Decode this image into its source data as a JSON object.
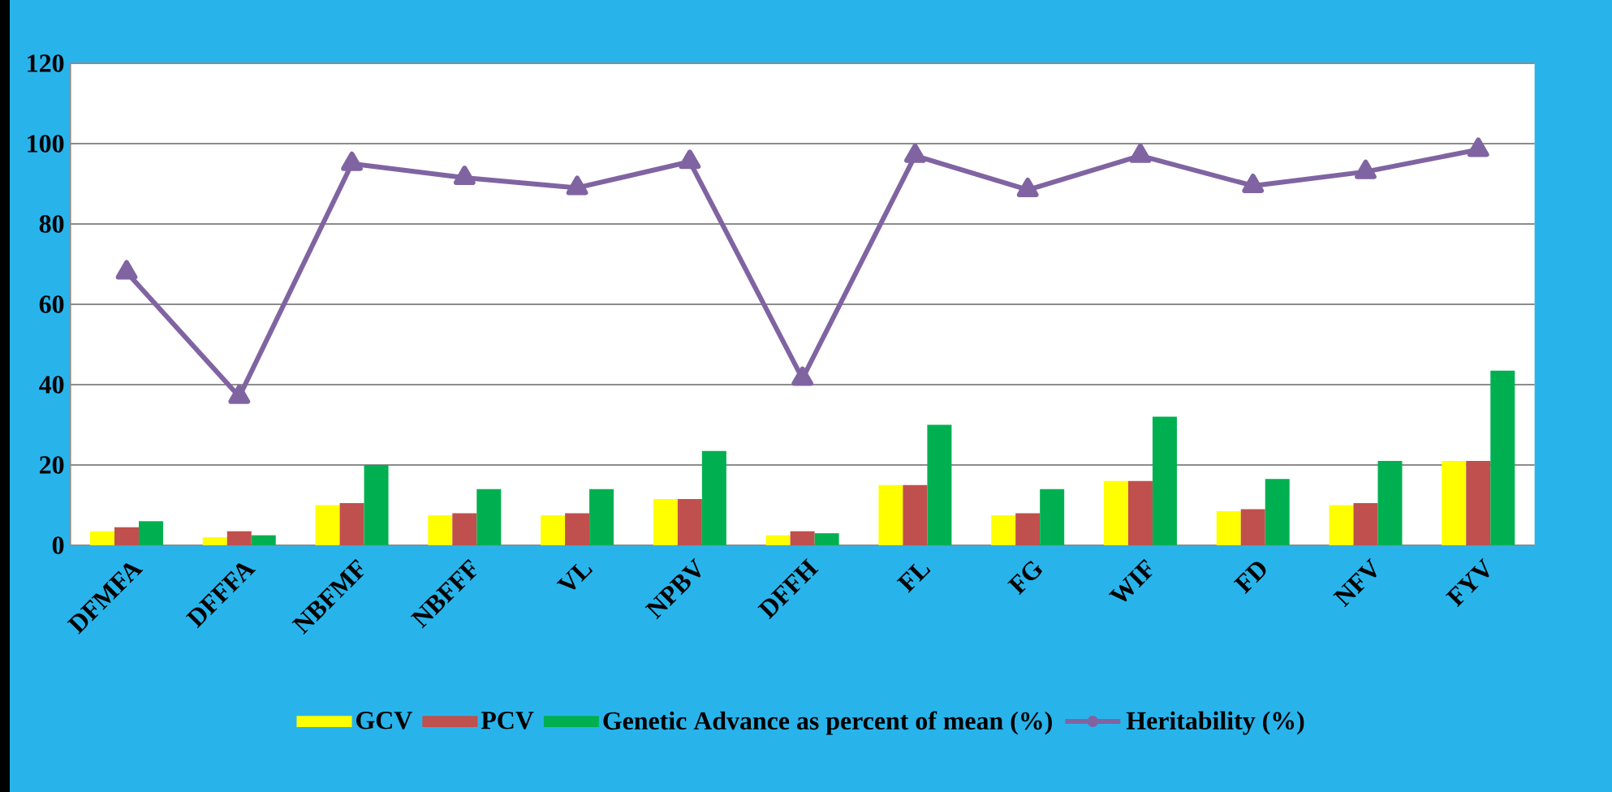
{
  "chart_data": {
    "type": "bar",
    "categories": [
      "DFMFA",
      "DFFFA",
      "NBFMF",
      "NBFFF",
      "VL",
      "NPBV",
      "DFFH",
      "FL",
      "FG",
      "WIF",
      "FD",
      "NFV",
      "FYV"
    ],
    "series": [
      {
        "name": "GCV",
        "color": "#ffff00",
        "values": [
          3.5,
          2,
          10,
          7.5,
          7.5,
          11.5,
          2.5,
          15,
          7.5,
          16,
          8.5,
          10,
          21
        ]
      },
      {
        "name": "PCV",
        "color": "#c0504d",
        "values": [
          4.5,
          3.5,
          10.5,
          8,
          8,
          11.5,
          3.5,
          15,
          8,
          16,
          9,
          10.5,
          21
        ]
      },
      {
        "name": "Genetic Advance as percent of mean (%)",
        "color": "#00b050",
        "values": [
          6,
          2.5,
          20,
          14,
          14,
          23.5,
          3,
          30,
          14,
          32,
          16.5,
          21,
          43.5
        ]
      },
      {
        "name": "Heritability (%)",
        "type": "line",
        "color": "#8064a2",
        "marker": "triangle",
        "values": [
          68,
          37,
          95,
          91.5,
          89,
          95.5,
          41.5,
          97,
          88.5,
          97,
          89.5,
          93,
          98.5
        ]
      }
    ],
    "ylim": [
      0,
      120
    ],
    "yticks": [
      0,
      20,
      40,
      60,
      80,
      100,
      120
    ],
    "grid": "y",
    "legend": "bottom"
  }
}
